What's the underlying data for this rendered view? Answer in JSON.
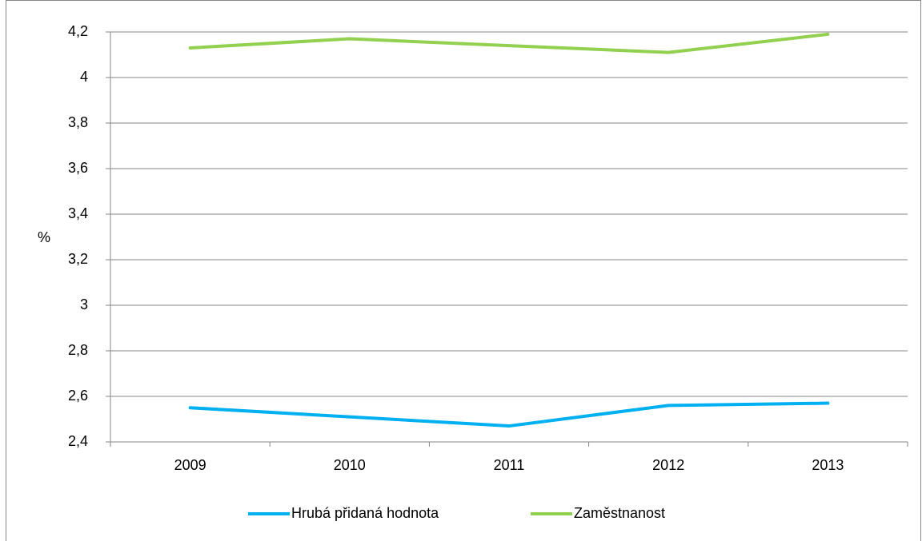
{
  "chart_data": {
    "type": "line",
    "ylabel": "%",
    "categories": [
      "2009",
      "2010",
      "2011",
      "2012",
      "2013"
    ],
    "series": [
      {
        "name": "Hrubá přidaná hodnota",
        "color": "#00b0f0",
        "values": [
          2.55,
          2.51,
          2.47,
          2.56,
          2.57
        ]
      },
      {
        "name": "Zaměstnanost",
        "color": "#92d050",
        "values": [
          4.13,
          4.17,
          4.14,
          4.11,
          4.19
        ]
      }
    ],
    "ylim": [
      2.4,
      4.2
    ],
    "yticks": [
      {
        "value": 2.4,
        "label": "2,4"
      },
      {
        "value": 2.6,
        "label": "2,6"
      },
      {
        "value": 2.8,
        "label": "2,8"
      },
      3,
      {
        "value": 3.2,
        "label": "3,2"
      },
      {
        "value": 3.4,
        "label": "3,4"
      },
      {
        "value": 3.6,
        "label": "3,6"
      },
      {
        "value": 3.8,
        "label": "3,8"
      },
      4,
      {
        "value": 4.2,
        "label": "4,2"
      }
    ],
    "grid": true,
    "legend": "bottom"
  }
}
